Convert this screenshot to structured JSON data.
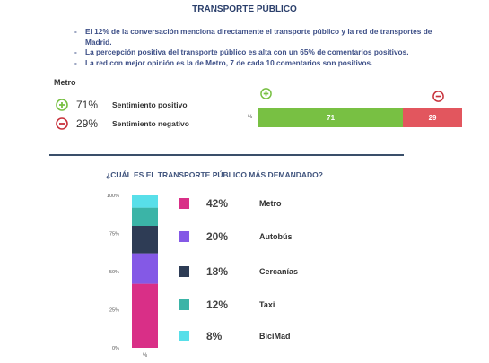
{
  "title": "TRANSPORTE PÚBLICO",
  "bullets": [
    "El 12% de la conversación menciona directamente el transporte público y la red de transportes de Madrid.",
    "La percepción positiva del transporte público es alta con un 65% de comentarios positivos.",
    "La red con mejor opinión es la de Metro, 7 de cada 10 comentarios son positivos."
  ],
  "bullet_marker": "-",
  "sentiment": {
    "section_label": "Metro",
    "axis_unit": "%",
    "positive": {
      "value": 71,
      "display": "71%",
      "label": "Sentimiento positivo",
      "color": "#78c043",
      "icon": "plus-circle-icon"
    },
    "negative": {
      "value": 29,
      "display": "29%",
      "label": "Sentimiento negativo",
      "color": "#e2565e",
      "icon": "minus-circle-icon"
    }
  },
  "demand_question": "¿CUÁL ES EL TRANSPORTE PÚBLICO MÁS DEMANDADO?",
  "chart_data": {
    "type": "bar",
    "stacked": true,
    "orientation": "vertical",
    "title": "¿CUÁL ES EL TRANSPORTE PÚBLICO MÁS DEMANDADO?",
    "xlabel": "%",
    "ylabel": "",
    "ylim": [
      0,
      100
    ],
    "yticks": [
      0,
      25,
      50,
      75,
      100
    ],
    "yticklabels": [
      "0%",
      "25%",
      "50%",
      "75%",
      "100%"
    ],
    "grid": false,
    "legend": "right",
    "series": [
      {
        "name": "Metro",
        "value": 42,
        "display": "42%",
        "color": "#d92f87"
      },
      {
        "name": "Autobús",
        "value": 20,
        "display": "20%",
        "color": "#8459e6"
      },
      {
        "name": "Cercanías",
        "value": 18,
        "display": "18%",
        "color": "#2e3c55"
      },
      {
        "name": "Taxi",
        "value": 12,
        "display": "12%",
        "color": "#3bb4a7"
      },
      {
        "name": "BiciMad",
        "value": 8,
        "display": "8%",
        "color": "#58dfe9"
      }
    ]
  }
}
